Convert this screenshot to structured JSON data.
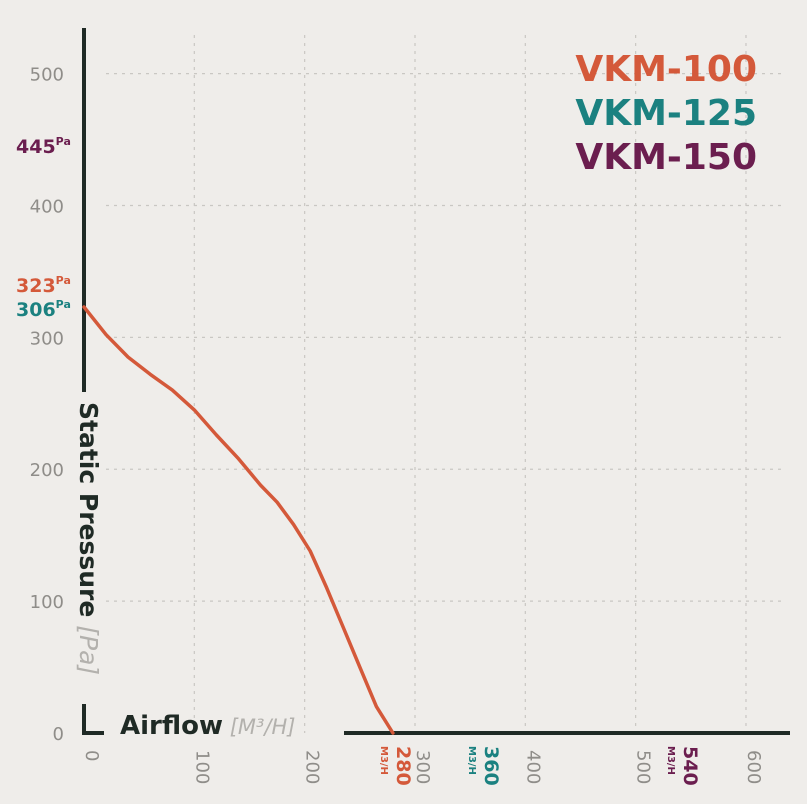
{
  "colors": {
    "background": "#efedea",
    "axis": "#1f2a25",
    "grid": "#c9c7c3",
    "tick": "#8f8d89",
    "unit": "#b3b1ad",
    "vkm100": "#d4593a",
    "vkm125": "#1b8180",
    "vkm150": "#6b1e4f"
  },
  "chart_data": {
    "type": "line",
    "xlabel": "Airflow",
    "xunit": "[M³/H]",
    "ylabel": "Static Pressure",
    "yunit": "[Pa]",
    "xlim": [
      0,
      600
    ],
    "ylim": [
      0,
      500
    ],
    "x_ticks": [
      "0",
      "100",
      "200",
      "300",
      "400",
      "500",
      "600"
    ],
    "y_ticks": [
      "0",
      "100",
      "200",
      "300",
      "400",
      "500"
    ],
    "grid": true,
    "legend_position": "top-right",
    "series": [
      {
        "name": "VKM-100",
        "color": "#d4593a",
        "max_pressure": "323",
        "max_pressure_unit": "Pa",
        "max_airflow": "280",
        "max_airflow_unit": "M3/H",
        "x": [
          0,
          20,
          40,
          60,
          80,
          100,
          120,
          140,
          160,
          175,
          190,
          205,
          220,
          235,
          250,
          265,
          280
        ],
        "y": [
          323,
          302,
          285,
          272,
          260,
          245,
          226,
          208,
          188,
          175,
          158,
          138,
          110,
          80,
          50,
          20,
          0
        ]
      },
      {
        "name": "VKM-125",
        "color": "#1b8180",
        "max_pressure": "306",
        "max_pressure_unit": "Pa",
        "max_airflow": "360",
        "max_airflow_unit": "M3/H"
      },
      {
        "name": "VKM-150",
        "color": "#6b1e4f",
        "max_pressure": "445",
        "max_pressure_unit": "Pa",
        "max_airflow": "540",
        "max_airflow_unit": "M3/H"
      }
    ]
  }
}
